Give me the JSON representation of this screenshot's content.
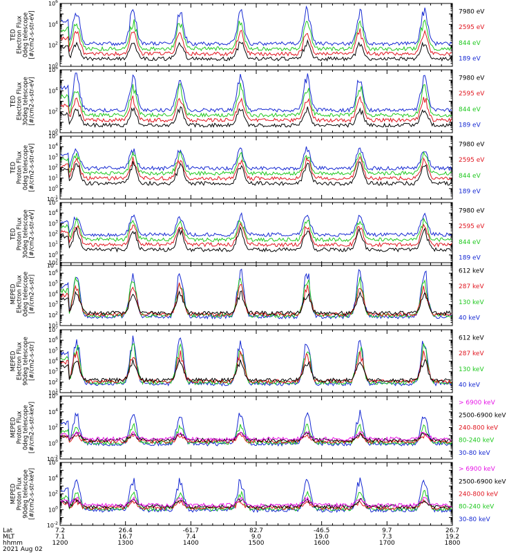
{
  "chart_data": {
    "type": "line",
    "yscale": "log",
    "x_hhmm_ticks": [
      "1200",
      "1300",
      "1400",
      "1500",
      "1600",
      "1700",
      "1800"
    ],
    "lat_ticks": [
      "7.2",
      "26.4",
      "-61.7",
      "82.7",
      "-46.5",
      "9.7",
      "26.7"
    ],
    "mlt_ticks": [
      "7.1",
      "16.7",
      "7.4",
      "9.0",
      "19.0",
      "7.3",
      "19.2"
    ],
    "xrow_labels": [
      "Lat",
      "MLT",
      "hhmm"
    ],
    "date": "2021 Aug 02",
    "panels": [
      {
        "ylabel": [
          "TED",
          "Electron Flux",
          "0deg telescope",
          "[#/cm2-s-str-eV]"
        ],
        "ylim_exp": [
          0,
          6
        ],
        "tick_exps": [
          0,
          2,
          4,
          6
        ],
        "series": [
          {
            "name": "7980 eV",
            "color": "#000000"
          },
          {
            "name": "2595 eV",
            "color": "#e0141e"
          },
          {
            "name": "844 eV",
            "color": "#1ec81e"
          },
          {
            "name": "189 eV",
            "color": "#1428d2"
          }
        ]
      },
      {
        "ylabel": [
          "TED",
          "Electron Flux",
          "30deg telescope",
          "[#/cm2-s-str-eV]"
        ],
        "ylim_exp": [
          0,
          6
        ],
        "tick_exps": [
          0,
          2,
          4,
          6
        ],
        "series": [
          {
            "name": "7980 eV",
            "color": "#000000"
          },
          {
            "name": "2595 eV",
            "color": "#e0141e"
          },
          {
            "name": "844 eV",
            "color": "#1ec81e"
          },
          {
            "name": "189 eV",
            "color": "#1428d2"
          }
        ]
      },
      {
        "ylabel": [
          "TED",
          "Proton Flux",
          "0deg telescope",
          "[#/cm2-s-str-eV]"
        ],
        "ylim_exp": [
          -1,
          5
        ],
        "tick_exps": [
          -1,
          0,
          1,
          2,
          3,
          4,
          5
        ],
        "series": [
          {
            "name": "7980 eV",
            "color": "#000000"
          },
          {
            "name": "2595 eV",
            "color": "#e0141e"
          },
          {
            "name": "844 eV",
            "color": "#1ec81e"
          },
          {
            "name": "189 eV",
            "color": "#1428d2"
          }
        ]
      },
      {
        "ylabel": [
          "TED",
          "Proton Flux",
          "30deg telescope",
          "[#/cm2-s-str-eV]"
        ],
        "ylim_exp": [
          -1,
          5
        ],
        "tick_exps": [
          -1,
          0,
          1,
          2,
          3,
          4,
          5
        ],
        "series": [
          {
            "name": "7980 eV",
            "color": "#000000"
          },
          {
            "name": "2595 eV",
            "color": "#e0141e"
          },
          {
            "name": "844 eV",
            "color": "#1ec81e"
          },
          {
            "name": "189 eV",
            "color": "#1428d2"
          }
        ]
      },
      {
        "ylabel": [
          "MEPED",
          "Electron Flux",
          "0deg telescope",
          "[#/cm2-s-str]"
        ],
        "ylim_exp": [
          1,
          7
        ],
        "tick_exps": [
          1,
          2,
          3,
          4,
          5,
          6,
          7
        ],
        "series": [
          {
            "name": "612 keV",
            "color": "#000000"
          },
          {
            "name": "287 keV",
            "color": "#e0141e"
          },
          {
            "name": "130 keV",
            "color": "#1ec81e"
          },
          {
            "name": "40 keV",
            "color": "#1428d2"
          }
        ]
      },
      {
        "ylabel": [
          "MEPED",
          "Electron Flux",
          "90deg telescope",
          "[#/cm2-s-str]"
        ],
        "ylim_exp": [
          1,
          7
        ],
        "tick_exps": [
          1,
          2,
          3,
          4,
          5,
          6,
          7
        ],
        "series": [
          {
            "name": "612 keV",
            "color": "#000000"
          },
          {
            "name": "287 keV",
            "color": "#e0141e"
          },
          {
            "name": "130 keV",
            "color": "#1ec81e"
          },
          {
            "name": "40 keV",
            "color": "#1428d2"
          }
        ]
      },
      {
        "ylabel": [
          "MEPED",
          "Proton Flux",
          "0deg telescope",
          "[#/cm2-s-str-keV]"
        ],
        "ylim_exp": [
          -2,
          6
        ],
        "tick_exps": [
          -2,
          0,
          2,
          4,
          6
        ],
        "series": [
          {
            "name": "> 6900 keV",
            "color": "#e614e6"
          },
          {
            "name": "2500-6900 keV",
            "color": "#000000"
          },
          {
            "name": "240-800 keV",
            "color": "#e0141e"
          },
          {
            "name": "80-240 keV",
            "color": "#1ec81e"
          },
          {
            "name": "30-80 keV",
            "color": "#1428d2"
          }
        ]
      },
      {
        "ylabel": [
          "MEPED",
          "Proton Flux",
          "90deg telescope",
          "[#/cm2-s-str-keV]"
        ],
        "ylim_exp": [
          -2,
          6
        ],
        "tick_exps": [
          -2,
          0,
          2,
          4,
          6
        ],
        "series": [
          {
            "name": "> 6900 keV",
            "color": "#e614e6"
          },
          {
            "name": "2500-6900 keV",
            "color": "#000000"
          },
          {
            "name": "240-800 keV",
            "color": "#e0141e"
          },
          {
            "name": "80-240 keV",
            "color": "#1ec81e"
          },
          {
            "name": "30-80 keV",
            "color": "#1428d2"
          }
        ]
      }
    ]
  }
}
